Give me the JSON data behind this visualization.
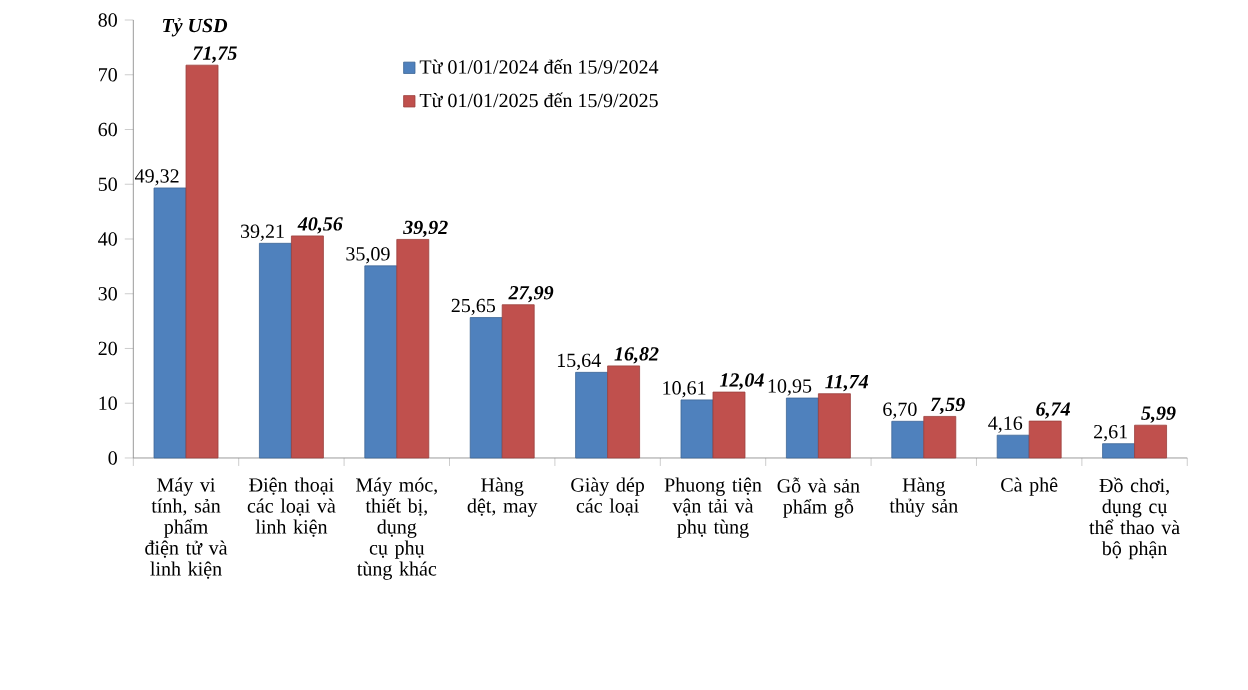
{
  "chart_data": {
    "type": "bar",
    "ylabel": "Tỷ USD",
    "categories": [
      "Máy vi tính, sản phẩm điện tử và linh kiện",
      "Điện thoại các loại và linh kiện",
      "Máy móc, thiết bị, dụng cụ phụ tùng khác",
      "Hàng dệt, may",
      "Giày dép các loại",
      "Phuong tiện vận tải và phụ tùng",
      "Gỗ và sản phẩm gỗ",
      "Hàng thủy sản",
      "Cà phê",
      "Đồ chơi, dụng cụ thể thao và bộ phận"
    ],
    "series": [
      {
        "name": "Từ 01/01/2024 đến 15/9/2024",
        "color": "#4f81bd",
        "values": [
          49.32,
          39.21,
          35.09,
          25.65,
          15.64,
          10.61,
          10.95,
          6.7,
          4.16,
          2.61
        ],
        "value_labels": [
          "49,32",
          "39,21",
          "35,09",
          "25,65",
          "15,64",
          "10,61",
          "10,95",
          "6,70",
          "4,16",
          "2,61"
        ]
      },
      {
        "name": "Từ 01/01/2025 đến 15/9/2025",
        "color": "#c0504d",
        "values": [
          71.75,
          40.56,
          39.92,
          27.99,
          16.82,
          12.04,
          11.74,
          7.59,
          6.74,
          5.99
        ],
        "value_labels": [
          "71,75",
          "40,56",
          "39,92",
          "27,99",
          "16,82",
          "12,04",
          "11,74",
          "7,59",
          "6,74",
          "5,99"
        ]
      }
    ],
    "ylim": [
      0,
      80
    ],
    "yticks": [
      0,
      10,
      20,
      30,
      40,
      50,
      60,
      70,
      80
    ],
    "grid": false,
    "legend": "top"
  }
}
